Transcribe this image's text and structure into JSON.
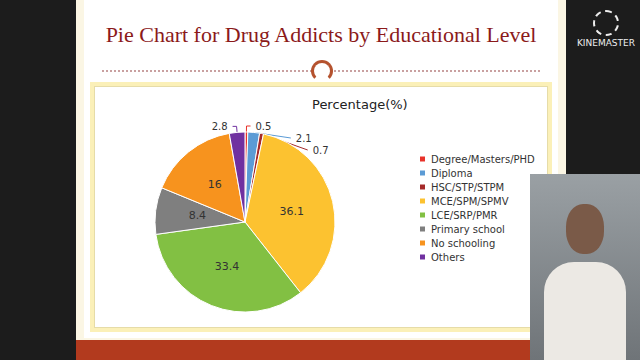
{
  "chart_data": {
    "type": "pie",
    "title": "Pie Chart for Drug Addicts by Educational Level",
    "subtitle": "Percentage(%)",
    "categories": [
      "Degree/Masters/PHD",
      "Diploma",
      "HSC/STP/STPM",
      "MCE/SPM/SPMV",
      "LCE/SRP/PMR",
      "Primary school",
      "No schooling",
      "Others"
    ],
    "values": [
      0.5,
      2.1,
      0.7,
      36.1,
      33.4,
      8.4,
      16,
      2.8
    ],
    "colors": [
      "#e8322a",
      "#5b9bd5",
      "#a52a2a",
      "#fcc230",
      "#82c043",
      "#7f7f7f",
      "#f7931e",
      "#7030a0"
    ],
    "data_labels": true,
    "legend": "right"
  },
  "watermark": "KINEMASTER"
}
